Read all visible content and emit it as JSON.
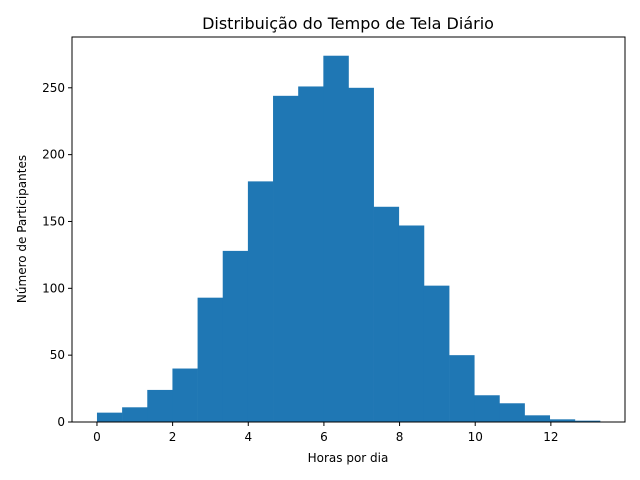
{
  "chart_data": {
    "type": "bar",
    "title": "Distribuição do Tempo de Tela Diário",
    "xlabel": "Horas por dia",
    "ylabel": "Número de Participantes",
    "x_range": [
      -0.66,
      13.96
    ],
    "ylim": [
      0,
      288
    ],
    "x_ticks": [
      0,
      2,
      4,
      6,
      8,
      10,
      12
    ],
    "y_ticks": [
      0,
      50,
      100,
      150,
      200,
      250
    ],
    "grid": false,
    "bins": [
      {
        "start": 0.0,
        "end": 0.665,
        "count": 7
      },
      {
        "start": 0.665,
        "end": 1.33,
        "count": 11
      },
      {
        "start": 1.33,
        "end": 1.995,
        "count": 24
      },
      {
        "start": 1.995,
        "end": 2.66,
        "count": 40
      },
      {
        "start": 2.66,
        "end": 3.325,
        "count": 93
      },
      {
        "start": 3.325,
        "end": 3.99,
        "count": 128
      },
      {
        "start": 3.99,
        "end": 4.655,
        "count": 180
      },
      {
        "start": 4.655,
        "end": 5.32,
        "count": 244
      },
      {
        "start": 5.32,
        "end": 5.985,
        "count": 251
      },
      {
        "start": 5.985,
        "end": 6.65,
        "count": 274
      },
      {
        "start": 6.65,
        "end": 7.315,
        "count": 250
      },
      {
        "start": 7.315,
        "end": 7.98,
        "count": 161
      },
      {
        "start": 7.98,
        "end": 8.645,
        "count": 147
      },
      {
        "start": 8.645,
        "end": 9.31,
        "count": 102
      },
      {
        "start": 9.31,
        "end": 9.975,
        "count": 50
      },
      {
        "start": 9.975,
        "end": 10.64,
        "count": 20
      },
      {
        "start": 10.64,
        "end": 11.305,
        "count": 14
      },
      {
        "start": 11.305,
        "end": 11.97,
        "count": 5
      },
      {
        "start": 11.97,
        "end": 12.635,
        "count": 2
      },
      {
        "start": 12.635,
        "end": 13.3,
        "count": 1
      }
    ]
  }
}
